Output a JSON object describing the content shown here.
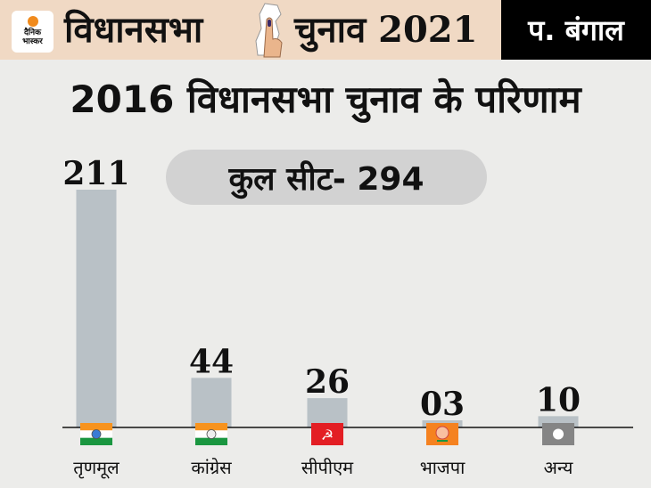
{
  "header": {
    "logo_text": [
      "दैनिक",
      "भास्कर"
    ],
    "title_part1": "विधानसभा",
    "title_part2": "चुनाव 2021",
    "state": "प. बंगाल"
  },
  "title": "2016 विधानसभा चुनाव के परिणाम",
  "total_seats_label": "कुल सीट- 294",
  "colors": {
    "bar": "#b9c1c6",
    "header_bg": "#f0d9c4"
  },
  "chart_data": {
    "type": "bar",
    "title": "2016 विधानसभा चुनाव के परिणाम",
    "categories": [
      "तृणमूल",
      "कांग्रेस",
      "सीपीएम",
      "भाजपा",
      "अन्य"
    ],
    "values": [
      211,
      44,
      26,
      3,
      10
    ],
    "value_labels": [
      "211",
      "44",
      "26",
      "03",
      "10"
    ],
    "symbols": [
      "tmc-flag",
      "congress-flag",
      "cpm-flag",
      "bjp-flag",
      "others-symbol"
    ],
    "annotation": "कुल सीट- 294",
    "xlabel": "",
    "ylabel": "",
    "ylim": [
      0,
      211
    ],
    "grid": false
  }
}
